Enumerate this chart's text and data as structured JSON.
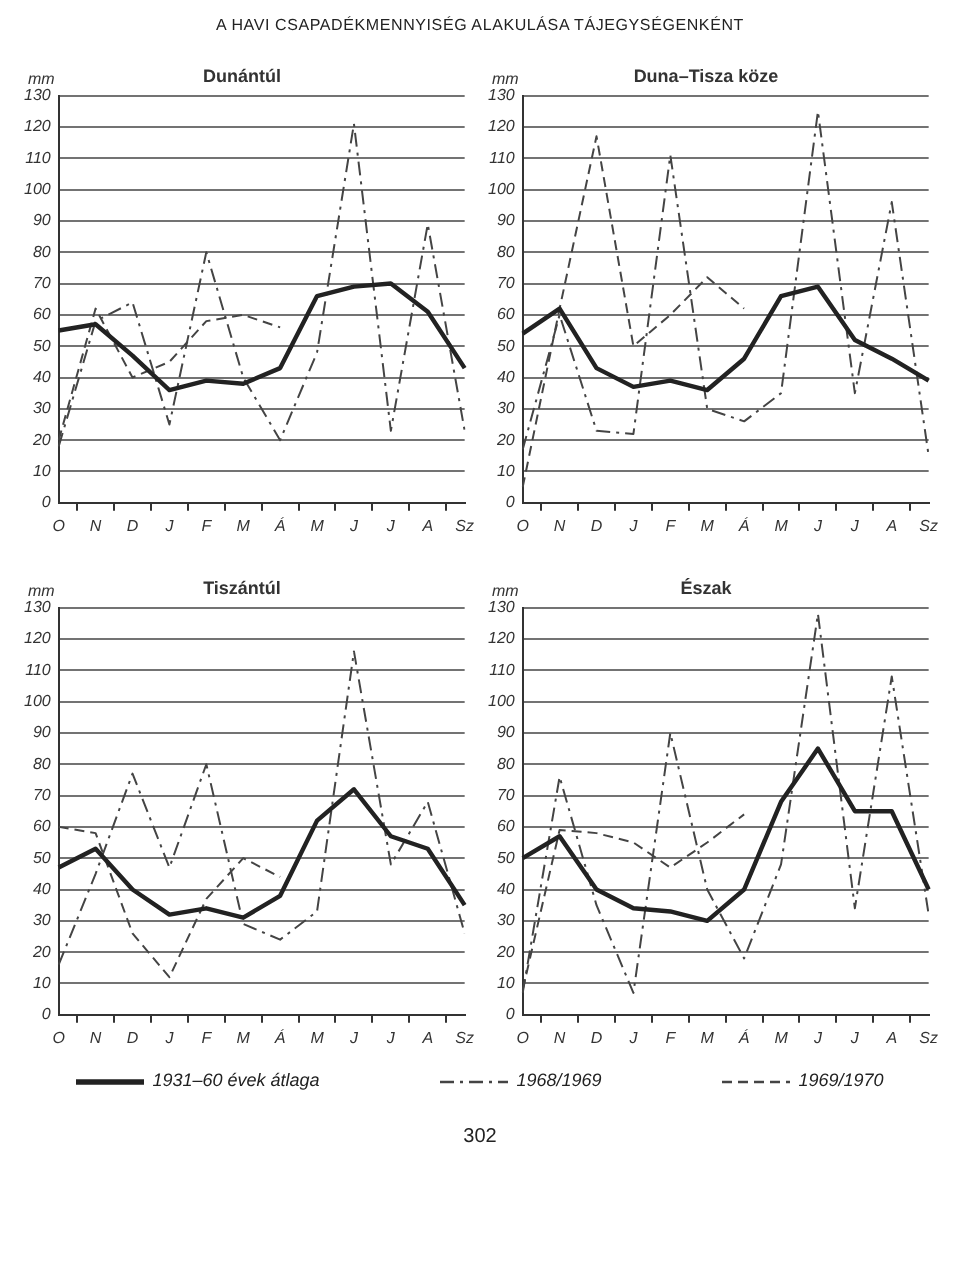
{
  "chart_data": [
    {
      "type": "line",
      "title": "A HAVI CSAPADÉKMENNYISÉG ALAKULÁSA TÁJEGYSÉGENKÉNT",
      "subtitle": "Dunántúl",
      "ylabel": "mm",
      "categories": [
        "O",
        "N",
        "D",
        "J",
        "F",
        "M",
        "Á",
        "M",
        "J",
        "J",
        "A",
        "Sz"
      ],
      "ylim": [
        0,
        130
      ],
      "yticks": [
        0,
        10,
        20,
        30,
        40,
        50,
        60,
        70,
        80,
        90,
        100,
        110,
        120,
        130
      ],
      "grid": "y",
      "legend": "bottom",
      "marker": "none",
      "series": [
        {
          "name": "1931–60 évek átlaga",
          "color": "#222222",
          "line_style": "solid",
          "values": [
            55,
            57,
            47,
            36,
            39,
            38,
            43,
            66,
            69,
            70,
            61,
            43
          ]
        },
        {
          "name": "1968/1969",
          "color": "#444444",
          "line_style": "dashdot",
          "values": [
            18,
            58,
            64,
            25,
            80,
            40,
            20,
            48,
            121,
            23,
            89,
            23
          ]
        },
        {
          "name": "1969/1970",
          "color": "#444444",
          "line_style": "dashed",
          "values": [
            20,
            62,
            40,
            45,
            58,
            60,
            56,
            null,
            null,
            null,
            null,
            null
          ]
        }
      ]
    },
    {
      "type": "line",
      "subtitle": "Duna–Tisza köze",
      "ylabel": "mm",
      "categories": [
        "O",
        "N",
        "D",
        "J",
        "F",
        "M",
        "Á",
        "M",
        "J",
        "J",
        "A",
        "Sz"
      ],
      "ylim": [
        0,
        130
      ],
      "yticks": [
        0,
        10,
        20,
        30,
        40,
        50,
        60,
        70,
        80,
        90,
        100,
        110,
        120,
        130
      ],
      "grid": "y",
      "marker": "none",
      "series": [
        {
          "color": "#222222",
          "line_style": "solid",
          "values": [
            54,
            62,
            43,
            37,
            39,
            36,
            46,
            66,
            69,
            52,
            46,
            39
          ]
        },
        {
          "color": "#444444",
          "line_style": "dashdot",
          "values": [
            17,
            60,
            23,
            22,
            111,
            30,
            26,
            35,
            125,
            35,
            96,
            15
          ]
        },
        {
          "color": "#444444",
          "line_style": "dashed",
          "values": [
            5,
            62,
            117,
            50,
            60,
            72,
            62,
            null,
            null,
            null,
            null,
            null
          ]
        }
      ]
    },
    {
      "type": "line",
      "subtitle": "Tiszántúl",
      "ylabel": "mm",
      "categories": [
        "O",
        "N",
        "D",
        "J",
        "F",
        "M",
        "Á",
        "M",
        "J",
        "J",
        "A",
        "Sz"
      ],
      "ylim": [
        0,
        130
      ],
      "yticks": [
        0,
        10,
        20,
        30,
        40,
        50,
        60,
        70,
        80,
        90,
        100,
        110,
        120,
        130
      ],
      "grid": "y",
      "marker": "none",
      "series": [
        {
          "color": "#222222",
          "line_style": "solid",
          "values": [
            47,
            53,
            40,
            32,
            34,
            31,
            38,
            62,
            72,
            57,
            53,
            35
          ]
        },
        {
          "color": "#444444",
          "line_style": "dashdot",
          "values": [
            16,
            45,
            77,
            47,
            80,
            29,
            24,
            33,
            116,
            48,
            68,
            26
          ]
        },
        {
          "color": "#444444",
          "line_style": "dashed",
          "values": [
            60,
            58,
            26,
            12,
            37,
            50,
            44,
            null,
            null,
            null,
            null,
            null
          ]
        }
      ]
    },
    {
      "type": "line",
      "subtitle": "Észak",
      "ylabel": "mm",
      "categories": [
        "O",
        "N",
        "D",
        "J",
        "F",
        "M",
        "Á",
        "M",
        "J",
        "J",
        "A",
        "Sz"
      ],
      "ylim": [
        0,
        130
      ],
      "yticks": [
        0,
        10,
        20,
        30,
        40,
        50,
        60,
        70,
        80,
        90,
        100,
        110,
        120,
        130
      ],
      "grid": "y",
      "marker": "none",
      "annotations": [
        "302"
      ],
      "series": [
        {
          "color": "#222222",
          "line_style": "solid",
          "values": [
            50,
            57,
            40,
            34,
            33,
            30,
            40,
            68,
            85,
            65,
            65,
            40
          ]
        },
        {
          "color": "#444444",
          "line_style": "dashdot",
          "values": [
            7,
            76,
            35,
            7,
            90,
            40,
            18,
            48,
            128,
            34,
            108,
            32
          ]
        },
        {
          "color": "#444444",
          "line_style": "dashed",
          "values": [
            8,
            59,
            58,
            55,
            47,
            55,
            64,
            null,
            null,
            null,
            null,
            null
          ]
        }
      ]
    }
  ]
}
